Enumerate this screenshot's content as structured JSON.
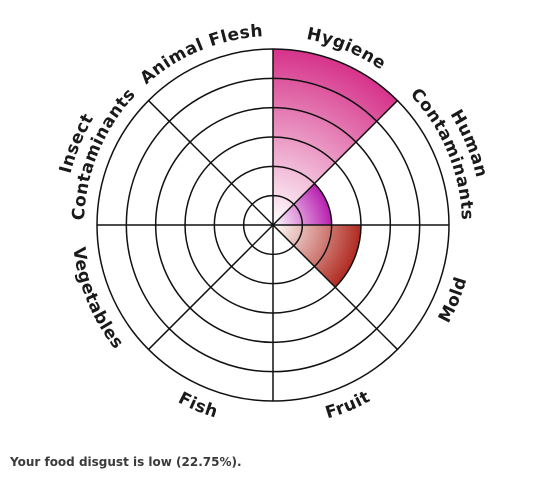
{
  "chart_data": {
    "type": "radial-sector",
    "rings": 6,
    "max": 6,
    "categories": [
      "Hygiene",
      "Human Contaminants",
      "Mold",
      "Fruit",
      "Fish",
      "Vegetables",
      "Insect Contaminants",
      "Animal Flesh"
    ],
    "label_lines": [
      [
        "Hygiene"
      ],
      [
        "Human",
        "Contaminants"
      ],
      [
        "Mold"
      ],
      [
        "Fruit"
      ],
      [
        "Fish"
      ],
      [
        "Vegetables"
      ],
      [
        "Insect",
        "Contaminants"
      ],
      [
        "Animal Flesh"
      ]
    ],
    "values": [
      6,
      2,
      3,
      0,
      0,
      0,
      0,
      0
    ],
    "colors": [
      "#d6338a",
      "#b81fb0",
      "#b02a20",
      "#999999",
      "#999999",
      "#999999",
      "#999999",
      "#999999"
    ],
    "grid": true
  },
  "footer": {
    "result_text": "Your food disgust is low (22.75%)."
  }
}
